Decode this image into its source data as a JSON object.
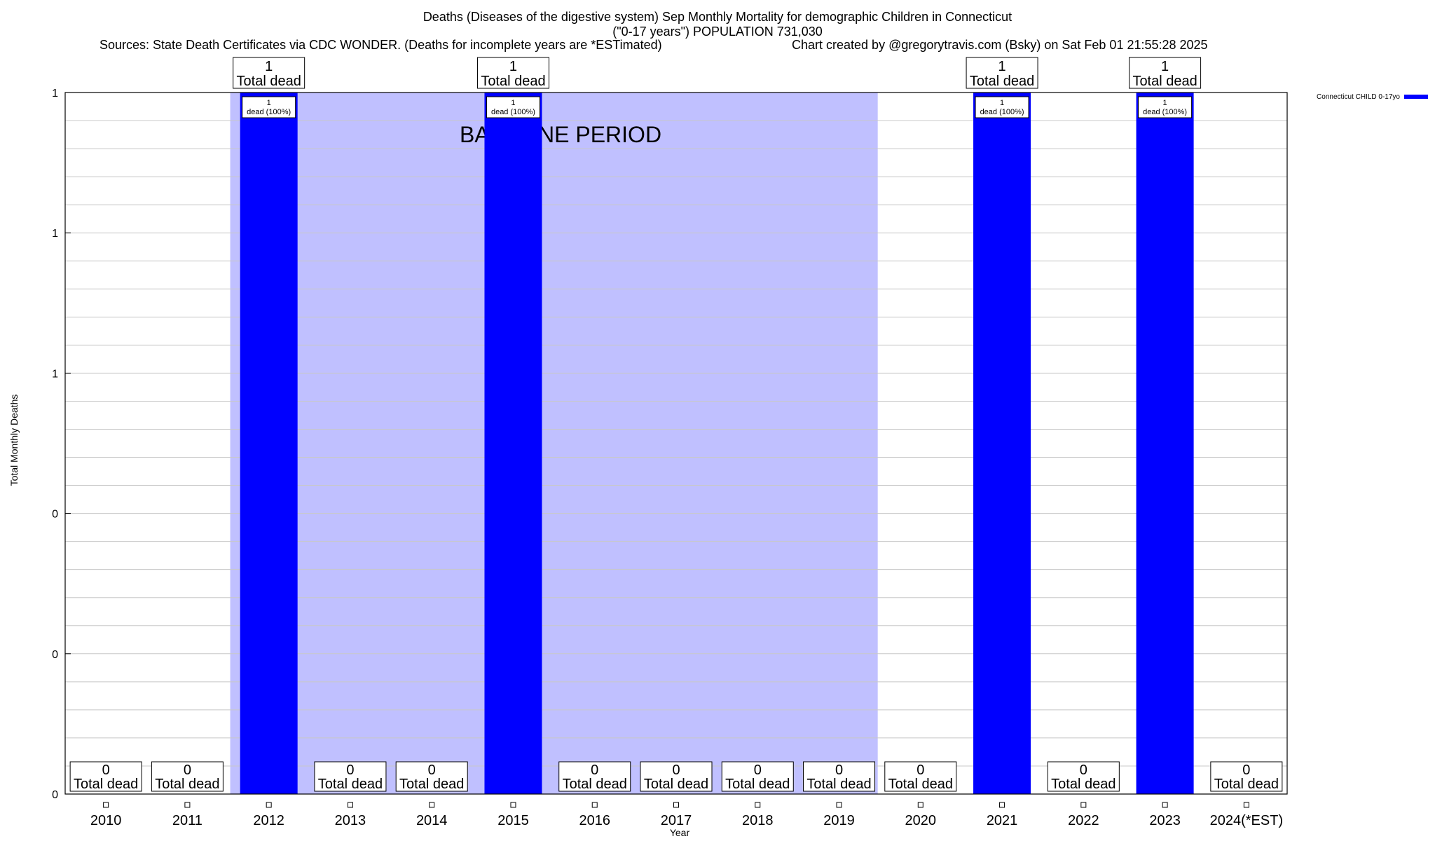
{
  "title": {
    "line1": "Deaths (Diseases of the digestive system) Sep Monthly Mortality for demographic Children in Connecticut",
    "line2": "(\"0-17 years\") POPULATION 731,030",
    "sources": "Sources: State Death Certificates via CDC WONDER. (Deaths for incomplete years are *ESTimated)",
    "credit": "Chart created by @gregorytravis.com (Bsky) on Sat Feb 01 21:55:28 2025"
  },
  "chart_data": {
    "type": "bar",
    "xlabel": "Year",
    "ylabel": "Total Monthly Deaths",
    "ylim": [
      0,
      1
    ],
    "ytick_labels": [
      "0",
      "0",
      "0",
      "1",
      "1",
      "1"
    ],
    "grid": true,
    "legend_position": "top-right",
    "categories": [
      "2010",
      "2011",
      "2012",
      "2013",
      "2014",
      "2015",
      "2016",
      "2017",
      "2018",
      "2019",
      "2020",
      "2021",
      "2022",
      "2023",
      "2024(*EST)"
    ],
    "series": [
      {
        "name": "Connecticut CHILD 0-17yo",
        "color": "#0000ff",
        "values": [
          0,
          0,
          1,
          0,
          0,
          1,
          0,
          0,
          0,
          0,
          0,
          1,
          0,
          1,
          0
        ]
      }
    ],
    "total_label": "Total dead",
    "inner_label": "dead (100%)",
    "baseline": {
      "label": "BASELINE PERIOD",
      "start": "2012",
      "end": "2019",
      "color": "#c0c0ff"
    }
  }
}
